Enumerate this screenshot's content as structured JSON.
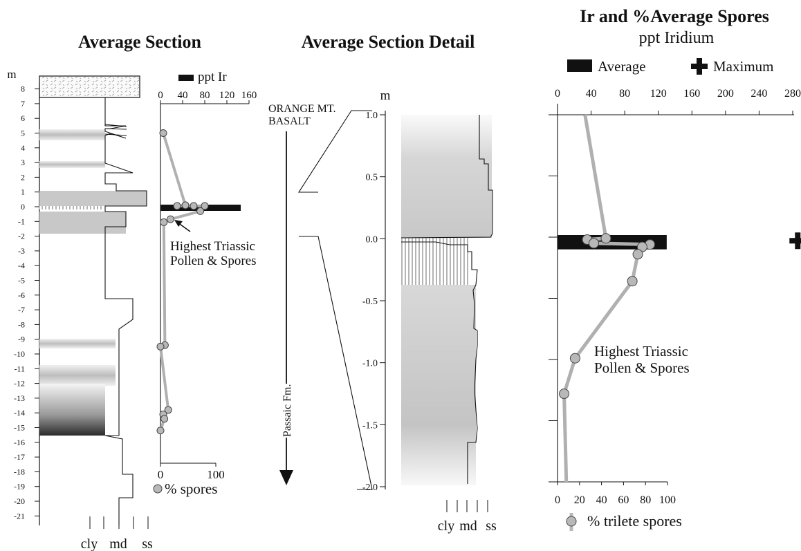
{
  "chart_data": [
    {
      "type": "line",
      "title": "Average Section",
      "y_axis": {
        "unit": "m",
        "ticks": [
          "8",
          "7",
          "6",
          "5",
          "4",
          "3",
          "2",
          "1",
          "0",
          "-1",
          "-2",
          "-3",
          "-4",
          "-5",
          "-6",
          "-7",
          "-8",
          "-9",
          "-10",
          "-11",
          "-12",
          "-13",
          "-14",
          "-15",
          "-16",
          "-17",
          "-18",
          "-19",
          "-20",
          "-21"
        ],
        "ylim": [
          -21,
          8.5
        ]
      },
      "grain_size_labels": [
        "cly",
        "md",
        "ss"
      ],
      "iridium_axis": {
        "legend": "ppt Ir",
        "ticks": [
          "0",
          "40",
          "80",
          "120",
          "160"
        ],
        "xlim": [
          0,
          160
        ]
      },
      "spores_axis": {
        "legend": "% spores",
        "ticks": [
          "0",
          "100"
        ],
        "xlim": [
          0,
          100
        ]
      },
      "iridium_bar": {
        "depth": 0.0,
        "value": 145
      },
      "series": [
        {
          "name": "% spores",
          "points": [
            [
              5,
              5
            ],
            [
              45,
              0.1
            ],
            [
              30,
              0.05
            ],
            [
              60,
              0.05
            ],
            [
              80,
              0.05
            ],
            [
              72,
              -0.3
            ],
            [
              18,
              -0.85
            ],
            [
              6,
              -1.05
            ],
            [
              8,
              -9.4
            ],
            [
              0,
              -9.5
            ],
            [
              14,
              -13.8
            ],
            [
              5,
              -14.1
            ],
            [
              7,
              -14.4
            ],
            [
              0,
              -15.2
            ]
          ]
        }
      ],
      "annotation": "Highest Triassic\nPollen & Spores"
    },
    {
      "type": "area",
      "title": "Average Section Detail",
      "y_axis": {
        "unit": "m",
        "ticks": [
          "1.0",
          "0.5",
          "0.0",
          "-0.5",
          "-1.0",
          "-1.5",
          "-2.0"
        ],
        "ylim": [
          -2.0,
          1.0
        ]
      },
      "grain_size_labels": [
        "cly",
        "md",
        "ss"
      ],
      "labels": {
        "top_unit": "ORANGE MT.\nBASALT",
        "formation": "Passaic Fm."
      }
    },
    {
      "type": "line",
      "title": "Ir and %Average Spores",
      "subtitle": "ppt Iridium",
      "legend": {
        "average": "Average",
        "maximum": "Maximum"
      },
      "iridium_axis": {
        "ticks": [
          "0",
          "40",
          "80",
          "120",
          "160",
          "200",
          "240",
          "280"
        ],
        "xlim": [
          0,
          280
        ]
      },
      "spores_axis": {
        "legend": "% trilete spores",
        "ticks": [
          "0",
          "20",
          "40",
          "60",
          "80",
          "100"
        ],
        "xlim": [
          0,
          100
        ]
      },
      "ylim": [
        -2.0,
        1.0
      ],
      "iridium_average": {
        "depth_top": 0.0,
        "depth_bottom": -0.1,
        "value": 130
      },
      "iridium_maximum": {
        "depth": -0.03,
        "value": 286
      },
      "series": [
        {
          "name": "% trilete spores",
          "points": [
            [
              25,
              1.0
            ],
            [
              44,
              -0.01
            ],
            [
              27,
              -0.02
            ],
            [
              33,
              -0.05
            ],
            [
              84,
              -0.06
            ],
            [
              77,
              -0.08
            ],
            [
              73,
              -0.14
            ],
            [
              68,
              -0.36
            ],
            [
              16,
              -0.99
            ],
            [
              6,
              -1.28
            ],
            [
              8,
              -2.0
            ]
          ]
        }
      ],
      "annotation": "Highest Triassic\nPollen & Spores"
    }
  ]
}
